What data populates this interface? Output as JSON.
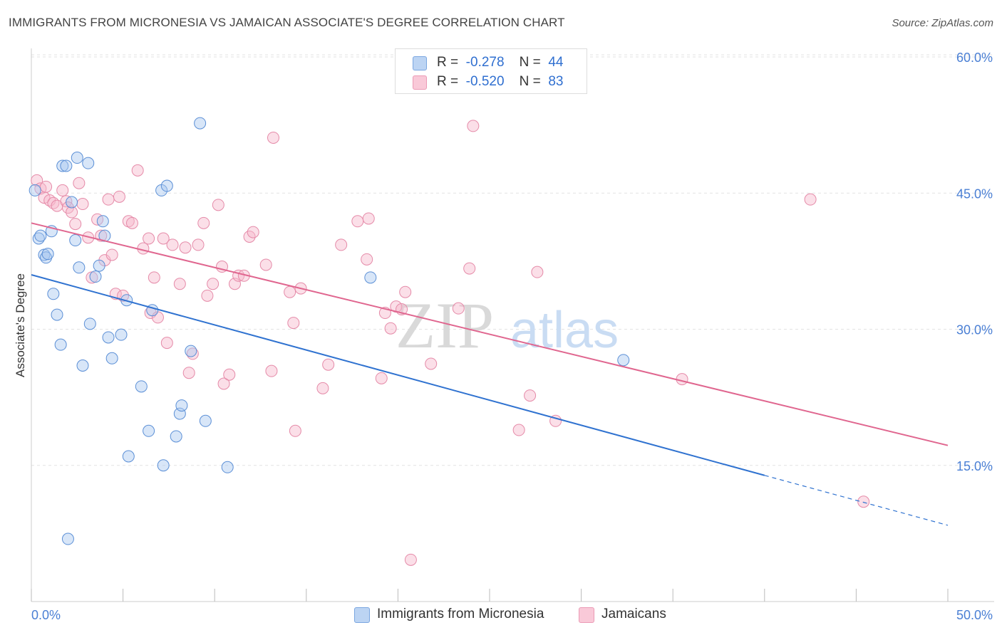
{
  "header": {
    "title": "IMMIGRANTS FROM MICRONESIA VS JAMAICAN ASSOCIATE'S DEGREE CORRELATION CHART",
    "source": "Source: ZipAtlas.com"
  },
  "watermark": {
    "zip": "ZIP",
    "atlas": "atlas"
  },
  "legend": {
    "series1": {
      "r_label": "R =",
      "r_value": "-0.278",
      "n_label": "N =",
      "n_value": "44"
    },
    "series2": {
      "r_label": "R =",
      "r_value": "-0.520",
      "n_label": "N =",
      "n_value": "83"
    }
  },
  "bottom_legend": {
    "series1": "Immigrants from Micronesia",
    "series2": "Jamaicans"
  },
  "colors": {
    "blue_fill": "#a9c8f0",
    "blue_stroke": "#5b8fd6",
    "blue_line": "#2f72d0",
    "pink_fill": "#f6b8cc",
    "pink_stroke": "#e58aa8",
    "pink_line": "#e0668f",
    "axis_text": "#4a7fd4",
    "grid": "#e3e3e3"
  },
  "chart_data": {
    "type": "scatter",
    "title": "IMMIGRANTS FROM MICRONESIA VS JAMAICAN ASSOCIATE'S DEGREE CORRELATION CHART",
    "xlabel": "",
    "ylabel": "Associate's Degree",
    "xlim": [
      0,
      50
    ],
    "ylim": [
      0,
      63
    ],
    "x_tick_labels": [
      "0.0%",
      "50.0%"
    ],
    "y_ticks": [
      15,
      30,
      45,
      60
    ],
    "y_tick_labels": [
      "15.0%",
      "30.0%",
      "45.0%",
      "60.0%"
    ],
    "grid": true,
    "legend_position": "top-center",
    "series": [
      {
        "name": "Immigrants from Micronesia",
        "r": -0.278,
        "n": 44,
        "trend": {
          "x0": 0,
          "y0": 36.0,
          "x1": 40,
          "y1": 13.9,
          "dashed_to_x": 50,
          "dashed_to_y": 8.4
        },
        "points": [
          [
            0.2,
            45.3
          ],
          [
            0.4,
            40.0
          ],
          [
            0.5,
            40.3
          ],
          [
            0.7,
            38.2
          ],
          [
            0.8,
            37.9
          ],
          [
            0.9,
            38.3
          ],
          [
            1.1,
            40.8
          ],
          [
            1.2,
            33.9
          ],
          [
            1.4,
            31.6
          ],
          [
            1.6,
            28.3
          ],
          [
            1.7,
            48.0
          ],
          [
            1.9,
            48.0
          ],
          [
            2.0,
            6.9
          ],
          [
            2.2,
            44.0
          ],
          [
            2.4,
            39.8
          ],
          [
            2.5,
            48.9
          ],
          [
            2.6,
            36.8
          ],
          [
            2.8,
            26.0
          ],
          [
            3.1,
            48.3
          ],
          [
            3.2,
            30.6
          ],
          [
            3.5,
            35.8
          ],
          [
            3.7,
            37.0
          ],
          [
            3.9,
            41.9
          ],
          [
            4.0,
            40.3
          ],
          [
            4.2,
            29.1
          ],
          [
            4.4,
            26.8
          ],
          [
            4.9,
            29.4
          ],
          [
            5.2,
            33.2
          ],
          [
            5.3,
            16.0
          ],
          [
            6.0,
            23.7
          ],
          [
            6.4,
            18.8
          ],
          [
            6.6,
            32.1
          ],
          [
            7.1,
            45.3
          ],
          [
            7.2,
            15.0
          ],
          [
            7.4,
            45.8
          ],
          [
            7.9,
            18.2
          ],
          [
            8.1,
            20.7
          ],
          [
            8.2,
            21.6
          ],
          [
            8.7,
            27.6
          ],
          [
            9.2,
            52.7
          ],
          [
            9.5,
            19.9
          ],
          [
            10.7,
            14.8
          ],
          [
            18.5,
            35.7
          ],
          [
            32.3,
            26.6
          ]
        ]
      },
      {
        "name": "Jamaicans",
        "r": -0.52,
        "n": 83,
        "trend": {
          "x0": 0,
          "y0": 41.7,
          "x1": 50,
          "y1": 17.2
        },
        "points": [
          [
            0.3,
            46.4
          ],
          [
            0.5,
            45.5
          ],
          [
            0.7,
            44.5
          ],
          [
            0.8,
            45.7
          ],
          [
            1.0,
            44.2
          ],
          [
            1.2,
            43.9
          ],
          [
            1.4,
            43.6
          ],
          [
            1.7,
            45.3
          ],
          [
            1.9,
            44.1
          ],
          [
            2.0,
            43.4
          ],
          [
            2.2,
            42.9
          ],
          [
            2.4,
            41.6
          ],
          [
            2.6,
            46.1
          ],
          [
            2.8,
            43.8
          ],
          [
            3.1,
            40.1
          ],
          [
            3.3,
            35.7
          ],
          [
            3.6,
            42.1
          ],
          [
            3.8,
            40.3
          ],
          [
            4.0,
            37.6
          ],
          [
            4.2,
            44.3
          ],
          [
            4.4,
            38.2
          ],
          [
            4.6,
            33.9
          ],
          [
            4.8,
            44.6
          ],
          [
            5.0,
            33.7
          ],
          [
            5.3,
            41.9
          ],
          [
            5.5,
            41.7
          ],
          [
            5.8,
            47.5
          ],
          [
            6.1,
            38.9
          ],
          [
            6.4,
            40.0
          ],
          [
            6.5,
            31.8
          ],
          [
            6.7,
            35.7
          ],
          [
            6.9,
            31.3
          ],
          [
            7.2,
            40.0
          ],
          [
            7.4,
            28.5
          ],
          [
            7.7,
            39.3
          ],
          [
            8.1,
            35.0
          ],
          [
            8.4,
            39.0
          ],
          [
            8.6,
            25.2
          ],
          [
            8.8,
            27.3
          ],
          [
            9.1,
            39.3
          ],
          [
            9.4,
            41.7
          ],
          [
            9.6,
            33.7
          ],
          [
            9.9,
            35.0
          ],
          [
            10.2,
            43.7
          ],
          [
            10.4,
            36.9
          ],
          [
            10.5,
            24.0
          ],
          [
            10.8,
            25.0
          ],
          [
            11.1,
            35.0
          ],
          [
            11.3,
            35.9
          ],
          [
            11.6,
            35.9
          ],
          [
            11.9,
            40.2
          ],
          [
            12.1,
            40.7
          ],
          [
            12.8,
            37.1
          ],
          [
            13.1,
            25.4
          ],
          [
            13.2,
            51.1
          ],
          [
            14.1,
            34.1
          ],
          [
            14.3,
            30.7
          ],
          [
            14.4,
            18.8
          ],
          [
            14.7,
            34.5
          ],
          [
            15.9,
            23.5
          ],
          [
            16.2,
            26.1
          ],
          [
            16.9,
            39.3
          ],
          [
            17.8,
            41.9
          ],
          [
            18.3,
            37.7
          ],
          [
            18.4,
            42.2
          ],
          [
            19.1,
            24.6
          ],
          [
            19.3,
            31.8
          ],
          [
            19.6,
            30.1
          ],
          [
            19.9,
            32.5
          ],
          [
            20.2,
            32.2
          ],
          [
            20.4,
            34.1
          ],
          [
            20.7,
            4.6
          ],
          [
            21.8,
            26.2
          ],
          [
            23.3,
            32.3
          ],
          [
            23.9,
            36.7
          ],
          [
            24.1,
            52.4
          ],
          [
            26.6,
            18.9
          ],
          [
            27.2,
            22.7
          ],
          [
            27.6,
            36.3
          ],
          [
            28.6,
            19.9
          ],
          [
            35.5,
            24.5
          ],
          [
            42.5,
            44.3
          ],
          [
            45.4,
            11.0
          ]
        ]
      }
    ]
  }
}
